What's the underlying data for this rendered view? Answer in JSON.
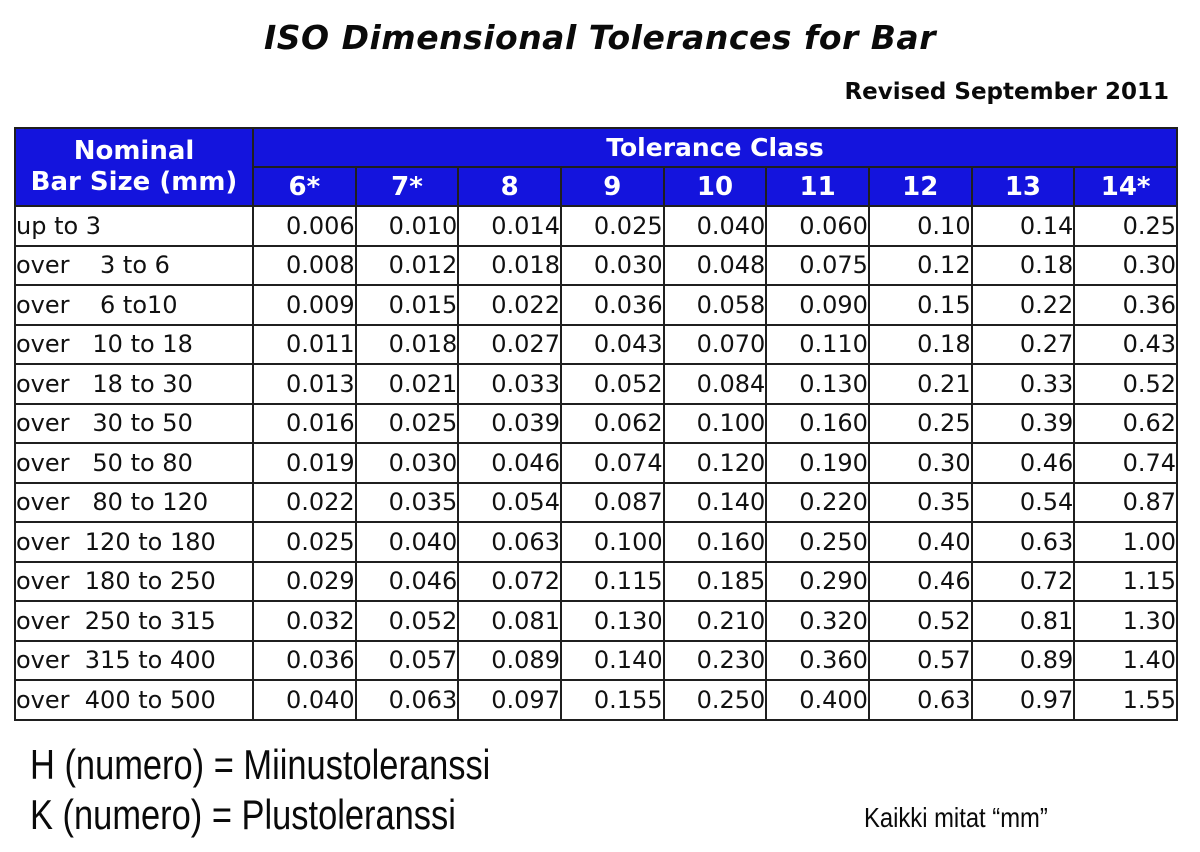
{
  "page": {
    "title": "ISO Dimensional Tolerances for Bar",
    "revised": "Revised September 2011"
  },
  "table": {
    "corner_header_line1": "Nominal",
    "corner_header_line2": "Bar Size (mm)",
    "group_header": "Tolerance Class",
    "class_headers": [
      "6*",
      "7*",
      "8",
      "9",
      "10",
      "11",
      "12",
      "13",
      "14*"
    ],
    "rows": [
      {
        "label": "up to 3",
        "values": [
          "0.006",
          "0.010",
          "0.014",
          "0.025",
          "0.040",
          "0.060",
          "0.10",
          "0.14",
          "0.25"
        ]
      },
      {
        "label": "over    3 to 6",
        "values": [
          "0.008",
          "0.012",
          "0.018",
          "0.030",
          "0.048",
          "0.075",
          "0.12",
          "0.18",
          "0.30"
        ]
      },
      {
        "label": "over    6 to10",
        "values": [
          "0.009",
          "0.015",
          "0.022",
          "0.036",
          "0.058",
          "0.090",
          "0.15",
          "0.22",
          "0.36"
        ]
      },
      {
        "label": "over   10 to 18",
        "values": [
          "0.011",
          "0.018",
          "0.027",
          "0.043",
          "0.070",
          "0.110",
          "0.18",
          "0.27",
          "0.43"
        ]
      },
      {
        "label": "over   18 to 30",
        "values": [
          "0.013",
          "0.021",
          "0.033",
          "0.052",
          "0.084",
          "0.130",
          "0.21",
          "0.33",
          "0.52"
        ]
      },
      {
        "label": "over   30 to 50",
        "values": [
          "0.016",
          "0.025",
          "0.039",
          "0.062",
          "0.100",
          "0.160",
          "0.25",
          "0.39",
          "0.62"
        ]
      },
      {
        "label": "over   50 to 80",
        "values": [
          "0.019",
          "0.030",
          "0.046",
          "0.074",
          "0.120",
          "0.190",
          "0.30",
          "0.46",
          "0.74"
        ]
      },
      {
        "label": "over   80 to 120",
        "values": [
          "0.022",
          "0.035",
          "0.054",
          "0.087",
          "0.140",
          "0.220",
          "0.35",
          "0.54",
          "0.87"
        ]
      },
      {
        "label": "over  120 to 180",
        "values": [
          "0.025",
          "0.040",
          "0.063",
          "0.100",
          "0.160",
          "0.250",
          "0.40",
          "0.63",
          "1.00"
        ]
      },
      {
        "label": "over  180 to 250",
        "values": [
          "0.029",
          "0.046",
          "0.072",
          "0.115",
          "0.185",
          "0.290",
          "0.46",
          "0.72",
          "1.15"
        ]
      },
      {
        "label": "over  250 to 315",
        "values": [
          "0.032",
          "0.052",
          "0.081",
          "0.130",
          "0.210",
          "0.320",
          "0.52",
          "0.81",
          "1.30"
        ]
      },
      {
        "label": "over  315 to 400",
        "values": [
          "0.036",
          "0.057",
          "0.089",
          "0.140",
          "0.230",
          "0.360",
          "0.57",
          "0.89",
          "1.40"
        ]
      },
      {
        "label": "over  400 to 500",
        "values": [
          "0.040",
          "0.063",
          "0.097",
          "0.155",
          "0.250",
          "0.400",
          "0.63",
          "0.97",
          "1.55"
        ]
      }
    ]
  },
  "footer": {
    "legend_h": "H (numero) = Miinustoleranssi",
    "legend_k": "K (numero) = Plustoleranssi",
    "units_note": "Kaikki mitat “mm”"
  },
  "colors": {
    "header_blue": "#1414dd",
    "header_text": "#ffffff",
    "border": "#1f1f1f"
  }
}
